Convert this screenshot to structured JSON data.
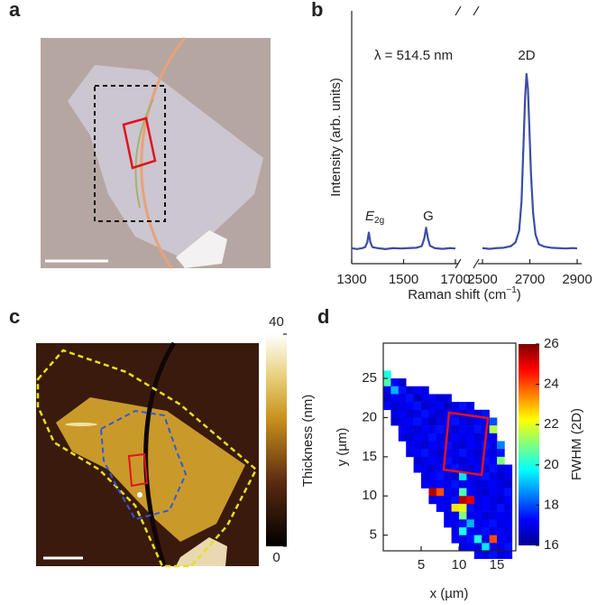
{
  "panel_labels": [
    "a",
    "b",
    "c",
    "d"
  ],
  "chart_data": [
    {
      "type": "line",
      "xlabel": [
        "Raman shift (cm",
        "−1",
        ")"
      ],
      "ylabel": "Intensity (arb. units)",
      "annotations": [
        "λ = 514.5 nm",
        "E",
        "2g",
        "G",
        "2D"
      ],
      "color": "#3c4da6",
      "xlim": [
        1300,
        2900
      ],
      "xbreak": [
        1700,
        2500
      ],
      "xticks": [
        1300,
        1500,
        1700,
        2500,
        2700,
        2900
      ],
      "ylim": [
        0,
        1.3
      ],
      "x": [
        1300,
        1320,
        1340,
        1352,
        1360,
        1366,
        1372,
        1380,
        1400,
        1430,
        1460,
        1490,
        1520,
        1550,
        1570,
        1580,
        1587,
        1594,
        1602,
        1620,
        1650,
        1680,
        1700,
        2100,
        2500,
        2530,
        2560,
        2590,
        2620,
        2640,
        2655,
        2665,
        2673,
        2680,
        2686,
        2692,
        2698,
        2705,
        2714,
        2724,
        2738,
        2760,
        2790,
        2820,
        2850,
        2880,
        2900
      ],
      "values": [
        0.08,
        0.075,
        0.08,
        0.085,
        0.11,
        0.16,
        0.11,
        0.085,
        0.08,
        0.075,
        0.08,
        0.078,
        0.08,
        0.082,
        0.09,
        0.13,
        0.185,
        0.13,
        0.092,
        0.08,
        0.076,
        0.08,
        0.078,
        null,
        0.08,
        0.076,
        0.08,
        0.082,
        0.09,
        0.11,
        0.17,
        0.32,
        0.6,
        0.85,
        0.975,
        0.9,
        0.7,
        0.46,
        0.26,
        0.15,
        0.1,
        0.088,
        0.082,
        0.08,
        0.078,
        0.08,
        0.079
      ]
    },
    {
      "type": "image",
      "colorbar_label": "Thickness (nm)",
      "zlim": [
        0,
        40
      ],
      "zticks": [
        0,
        40
      ]
    },
    {
      "type": "heatmap",
      "xlabel": "x (µm)",
      "ylabel": "y (µm)",
      "colorbar_label": "FWHM (2D)",
      "xlim": [
        0,
        17.5
      ],
      "ylim": [
        3,
        29.5
      ],
      "xticks": [
        5,
        10,
        15
      ],
      "yticks": [
        5,
        10,
        15,
        20,
        25
      ],
      "zlim": [
        16,
        26
      ],
      "zticks": [
        16,
        18,
        20,
        22,
        24,
        26
      ],
      "x": [
        0.5,
        1.5,
        2.5,
        3.5,
        4.5,
        5.5,
        6.5,
        7.5,
        8.5,
        9.5,
        10.5,
        11.5,
        12.5,
        13.5,
        14.5,
        15.5,
        16.5
      ],
      "y": [
        26.5,
        25.5,
        24.5,
        23.5,
        22.5,
        21.5,
        20.5,
        19.5,
        18.5,
        17.5,
        16.5,
        15.5,
        14.5,
        13.5,
        12.5,
        11.5,
        10.5,
        9.5,
        8.5,
        7.5,
        6.5,
        5.5,
        4.5,
        3.5
      ],
      "z": [
        [
          20.0,
          null,
          null,
          null,
          null,
          null,
          null,
          null,
          null,
          null,
          null,
          null,
          null,
          null,
          null,
          null,
          null
        ],
        [
          20.5,
          17.2,
          16.8,
          null,
          null,
          null,
          null,
          null,
          null,
          null,
          null,
          null,
          null,
          null,
          null,
          null,
          null
        ],
        [
          17.0,
          19.0,
          17.4,
          16.8,
          17.2,
          17.0,
          null,
          null,
          null,
          null,
          null,
          null,
          null,
          null,
          null,
          null,
          null
        ],
        [
          16.8,
          17.2,
          17.0,
          17.4,
          16.6,
          17.0,
          17.2,
          16.8,
          17.0,
          null,
          null,
          null,
          null,
          null,
          null,
          null,
          null
        ],
        [
          17.2,
          16.8,
          17.0,
          17.2,
          17.4,
          16.8,
          17.0,
          17.2,
          16.6,
          17.0,
          17.4,
          17.0,
          null,
          null,
          null,
          null,
          null
        ],
        [
          null,
          17.0,
          17.2,
          16.8,
          17.0,
          17.4,
          17.0,
          16.8,
          17.2,
          17.0,
          16.8,
          17.2,
          17.0,
          17.4,
          null,
          null,
          null
        ],
        [
          null,
          16.8,
          17.0,
          17.2,
          17.4,
          17.0,
          16.6,
          17.0,
          17.2,
          17.4,
          17.0,
          16.8,
          17.2,
          17.0,
          18.0,
          null,
          null
        ],
        [
          null,
          null,
          17.2,
          17.0,
          16.8,
          17.2,
          17.0,
          17.4,
          17.0,
          16.8,
          17.2,
          17.0,
          17.4,
          17.0,
          21.5,
          null,
          null
        ],
        [
          null,
          null,
          17.0,
          16.8,
          17.2,
          17.0,
          17.4,
          17.0,
          16.8,
          17.2,
          17.0,
          17.2,
          16.8,
          17.0,
          17.2,
          null,
          null
        ],
        [
          null,
          null,
          null,
          17.2,
          17.0,
          16.8,
          17.2,
          17.0,
          17.4,
          17.0,
          16.8,
          17.2,
          17.0,
          17.4,
          17.0,
          18.5,
          null
        ],
        [
          null,
          null,
          null,
          17.0,
          17.2,
          17.4,
          17.0,
          16.8,
          17.2,
          17.0,
          17.4,
          17.0,
          16.8,
          17.2,
          17.0,
          17.4,
          null
        ],
        [
          null,
          null,
          null,
          null,
          16.8,
          17.0,
          17.2,
          17.0,
          17.4,
          17.0,
          16.8,
          17.2,
          17.0,
          17.4,
          17.2,
          21.0,
          null
        ],
        [
          null,
          null,
          null,
          null,
          17.2,
          17.0,
          16.8,
          17.2,
          17.0,
          17.4,
          17.0,
          16.8,
          17.2,
          17.0,
          17.4,
          17.0,
          17.2
        ],
        [
          null,
          null,
          null,
          null,
          null,
          17.0,
          17.2,
          17.4,
          17.0,
          16.8,
          19.5,
          17.0,
          17.2,
          17.4,
          17.0,
          16.8,
          17.0
        ],
        [
          null,
          null,
          null,
          null,
          null,
          17.2,
          17.0,
          17.2,
          17.0,
          17.4,
          17.0,
          17.2,
          16.8,
          17.0,
          17.2,
          17.0,
          16.8
        ],
        [
          null,
          null,
          null,
          null,
          null,
          null,
          25.5,
          24.0,
          17.2,
          17.0,
          20.5,
          17.2,
          17.0,
          16.8,
          17.2,
          17.0,
          17.4
        ],
        [
          null,
          null,
          null,
          null,
          null,
          null,
          17.0,
          17.2,
          17.0,
          17.4,
          25.5,
          25.0,
          17.0,
          17.2,
          17.0,
          16.8,
          17.2
        ],
        [
          null,
          null,
          null,
          null,
          null,
          null,
          null,
          17.2,
          17.0,
          22.5,
          22.0,
          17.4,
          17.0,
          17.2,
          17.0,
          17.4,
          17.0
        ],
        [
          null,
          null,
          null,
          null,
          null,
          null,
          null,
          null,
          17.0,
          17.2,
          21.0,
          17.0,
          17.2,
          16.8,
          17.0,
          17.2,
          17.0
        ],
        [
          null,
          null,
          null,
          null,
          null,
          null,
          null,
          null,
          17.2,
          17.0,
          17.4,
          19.0,
          17.0,
          17.2,
          17.4,
          17.0,
          17.2
        ],
        [
          null,
          null,
          null,
          null,
          null,
          null,
          null,
          null,
          null,
          17.0,
          20.0,
          17.2,
          17.0,
          17.4,
          17.0,
          17.2,
          17.0
        ],
        [
          null,
          null,
          null,
          null,
          null,
          null,
          null,
          null,
          null,
          17.2,
          17.0,
          17.4,
          20.0,
          17.0,
          24.0,
          17.2,
          17.0
        ],
        [
          null,
          null,
          null,
          null,
          null,
          null,
          null,
          null,
          null,
          null,
          17.0,
          17.2,
          17.0,
          19.5,
          17.2,
          17.0,
          17.4
        ],
        [
          null,
          null,
          null,
          null,
          null,
          null,
          null,
          null,
          null,
          null,
          null,
          null,
          17.2,
          17.0,
          17.4,
          17.0,
          17.2
        ]
      ]
    }
  ]
}
